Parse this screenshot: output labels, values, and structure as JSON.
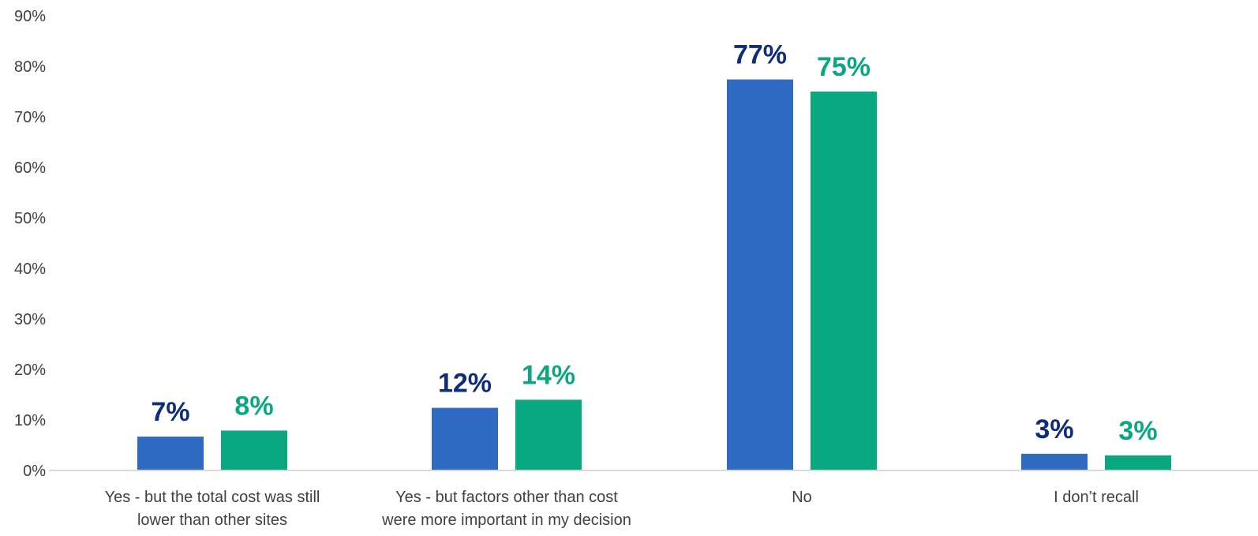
{
  "chart_data": {
    "type": "bar",
    "title": "",
    "xlabel": "",
    "ylabel": "",
    "ylim": [
      0,
      90
    ],
    "y_ticks": [
      0,
      10,
      20,
      30,
      40,
      50,
      60,
      70,
      80,
      90
    ],
    "y_tick_format": "percent",
    "grid": false,
    "legend": "none",
    "categories": [
      [
        "Yes - but the total cost was still",
        "lower than other sites"
      ],
      [
        "Yes - but factors other than cost",
        "were more important in my decision"
      ],
      [
        "No"
      ],
      [
        "I don’t recall"
      ]
    ],
    "series": [
      {
        "color": "#2f6ac3",
        "label_color": "#0f2d7a",
        "values": [
          7,
          12,
          77,
          3
        ],
        "labels": [
          "7%",
          "12%",
          "77%",
          "3%"
        ],
        "bar_values": [
          6.7,
          12.4,
          77.4,
          3.3
        ]
      },
      {
        "color": "#0aa880",
        "label_color": "#0aa880",
        "values": [
          8,
          14,
          75,
          3
        ],
        "labels": [
          "8%",
          "14%",
          "75%",
          "3%"
        ],
        "bar_values": [
          7.9,
          14.0,
          75.0,
          3.0
        ]
      }
    ]
  }
}
